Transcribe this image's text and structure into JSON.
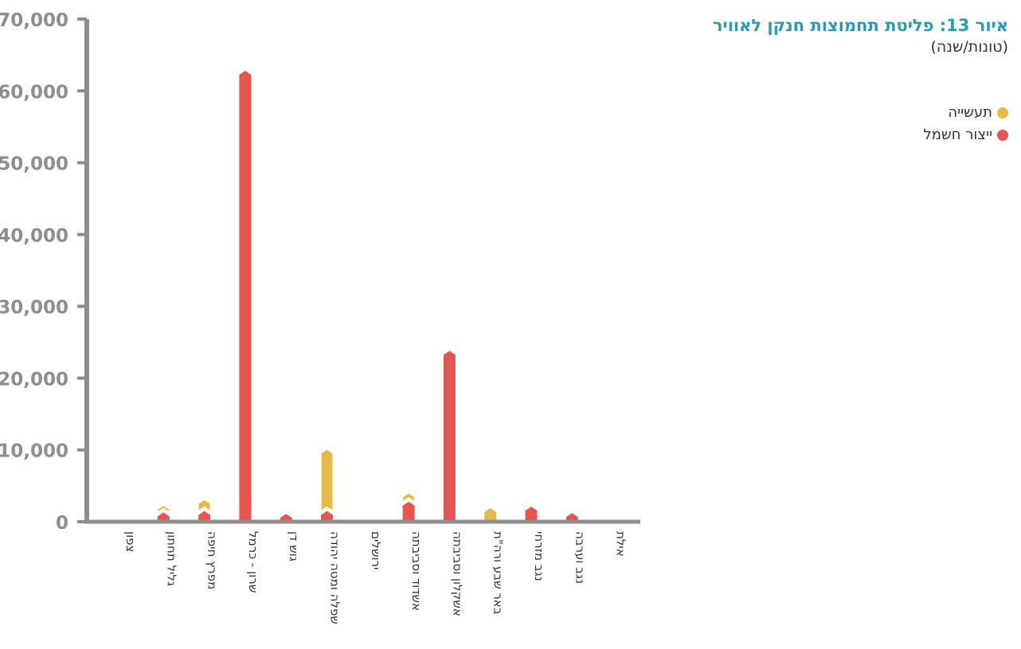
{
  "title": "איור 13: פליטת תחמוצות חנקן לאוויר",
  "subtitle": "(טונות/שנה)",
  "legend": [
    {
      "label": "תעשייה",
      "color": "#e3bb4a"
    },
    {
      "label": "ייצור חשמל",
      "color": "#e85551"
    }
  ],
  "chart_data": {
    "type": "bar",
    "stacked": true,
    "title": "איור 13: פליטת תחמוצות חנקן לאוויר",
    "ylabel": "(טונות/שנה)",
    "ylim": [
      0,
      70000
    ],
    "yticks": [
      0,
      10000,
      20000,
      30000,
      40000,
      50000,
      60000,
      70000
    ],
    "ytick_labels": [
      "0",
      "10,000",
      "20,000",
      "30,000",
      "40,000",
      "50,000",
      "60,000",
      "70,000"
    ],
    "categories": [
      "צפון",
      "גליל תחתון",
      "מפרץ חיפה",
      "שרון - כרמל",
      "גוש דן",
      "שפלה ומטה יהודה",
      "ירושלים",
      "אשדוד וסביבתה",
      "אשקלון וסביבתה",
      "באר שבע ורה\"ת",
      "נגב מזרחי",
      "נגב וערבה",
      "אילת"
    ],
    "series": [
      {
        "name": "ייצור חשמל",
        "color": "#e85551",
        "values": [
          0,
          1300,
          1500,
          62800,
          1100,
          1500,
          0,
          2800,
          23800,
          0,
          2100,
          1200,
          0
        ]
      },
      {
        "name": "תעשייה",
        "color": "#e3bb4a",
        "values": [
          0,
          1000,
          1600,
          0,
          400,
          8600,
          0,
          1200,
          0,
          1900,
          0,
          0,
          0
        ]
      }
    ],
    "grid": false,
    "legend_position": "top-right"
  }
}
